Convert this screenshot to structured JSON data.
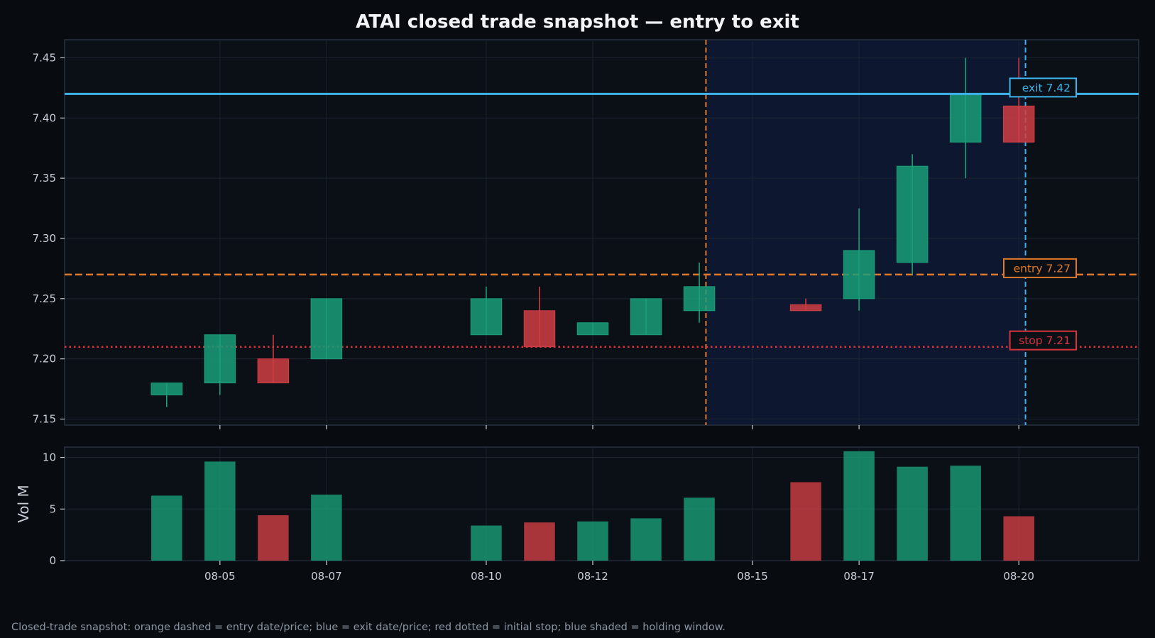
{
  "title": "ATAI closed trade snapshot — entry to exit",
  "footnote": "Closed-trade snapshot: orange dashed = entry date/price; blue = exit date/price; red dotted = initial stop; blue shaded = holding window.",
  "colors": {
    "background": "#080b10",
    "panel": "#0b1017",
    "holding_window": "#0d1a33",
    "up": "#1a9e78",
    "down": "#cf3e44",
    "entry": "#e07a2a",
    "exit": "#3fb4ea",
    "stop": "#d8333b",
    "text": "#c9cfd8"
  },
  "chart_data": [
    {
      "type": "candlestick",
      "title": "ATAI closed trade snapshot — entry to exit",
      "ylim": [
        7.145,
        7.465
      ],
      "yticks": [
        7.15,
        7.2,
        7.25,
        7.3,
        7.35,
        7.4,
        7.45
      ],
      "ytick_labels": [
        "7.15",
        "7.20",
        "7.25",
        "7.30",
        "7.35",
        "7.40",
        "7.45"
      ],
      "xlim": [
        "2025-08-02T14:00",
        "2025-08-22T18:00"
      ],
      "xticks": [
        "2025-08-05",
        "2025-08-07",
        "2025-08-10",
        "2025-08-12",
        "2025-08-15",
        "2025-08-17",
        "2025-08-20"
      ],
      "xtick_labels": [
        "08-05",
        "08-07",
        "08-10",
        "08-12",
        "08-15",
        "08-17",
        "08-20"
      ],
      "grid": true,
      "candles": [
        {
          "date": "2025-08-04",
          "open": 7.17,
          "high": 7.18,
          "low": 7.16,
          "close": 7.18
        },
        {
          "date": "2025-08-05",
          "open": 7.18,
          "high": 7.22,
          "low": 7.17,
          "close": 7.22
        },
        {
          "date": "2025-08-06",
          "open": 7.2,
          "high": 7.22,
          "low": 7.18,
          "close": 7.18
        },
        {
          "date": "2025-08-07",
          "open": 7.2,
          "high": 7.25,
          "low": 7.2,
          "close": 7.25
        },
        {
          "date": "2025-08-10",
          "open": 7.22,
          "high": 7.26,
          "low": 7.22,
          "close": 7.25
        },
        {
          "date": "2025-08-11",
          "open": 7.24,
          "high": 7.26,
          "low": 7.21,
          "close": 7.21
        },
        {
          "date": "2025-08-12",
          "open": 7.22,
          "high": 7.23,
          "low": 7.22,
          "close": 7.23
        },
        {
          "date": "2025-08-13",
          "open": 7.22,
          "high": 7.25,
          "low": 7.22,
          "close": 7.25
        },
        {
          "date": "2025-08-14",
          "open": 7.24,
          "high": 7.28,
          "low": 7.23,
          "close": 7.26
        },
        {
          "date": "2025-08-16",
          "open": 7.245,
          "high": 7.25,
          "low": 7.24,
          "close": 7.24
        },
        {
          "date": "2025-08-17",
          "open": 7.25,
          "high": 7.325,
          "low": 7.24,
          "close": 7.29
        },
        {
          "date": "2025-08-18",
          "open": 7.28,
          "high": 7.37,
          "low": 7.27,
          "close": 7.36
        },
        {
          "date": "2025-08-19",
          "open": 7.38,
          "high": 7.45,
          "low": 7.35,
          "close": 7.42
        },
        {
          "date": "2025-08-20",
          "open": 7.41,
          "high": 7.45,
          "low": 7.38,
          "close": 7.38
        }
      ],
      "entry": {
        "date": "2025-08-14T15:00",
        "price": 7.27,
        "label": "entry 7.27"
      },
      "exit": {
        "date": "2025-08-20T15:00",
        "price": 7.42,
        "label": "exit 7.42"
      },
      "stop": {
        "price": 7.21,
        "label": "stop 7.21"
      },
      "holding_window": [
        "2025-08-14T15:00",
        "2025-08-20T15:00"
      ]
    },
    {
      "type": "bar",
      "ylabel": "Vol M",
      "ylim": [
        0,
        11
      ],
      "yticks": [
        0,
        5,
        10
      ],
      "ytick_labels": [
        "0",
        "5",
        "10"
      ],
      "grid": true,
      "volumes": [
        {
          "date": "2025-08-04",
          "value": 6.3,
          "direction": "up"
        },
        {
          "date": "2025-08-05",
          "value": 9.6,
          "direction": "up"
        },
        {
          "date": "2025-08-06",
          "value": 4.4,
          "direction": "down"
        },
        {
          "date": "2025-08-07",
          "value": 6.4,
          "direction": "up"
        },
        {
          "date": "2025-08-10",
          "value": 3.4,
          "direction": "up"
        },
        {
          "date": "2025-08-11",
          "value": 3.7,
          "direction": "down"
        },
        {
          "date": "2025-08-12",
          "value": 3.8,
          "direction": "up"
        },
        {
          "date": "2025-08-13",
          "value": 4.1,
          "direction": "up"
        },
        {
          "date": "2025-08-14",
          "value": 6.1,
          "direction": "up"
        },
        {
          "date": "2025-08-16",
          "value": 7.6,
          "direction": "down"
        },
        {
          "date": "2025-08-17",
          "value": 10.6,
          "direction": "up"
        },
        {
          "date": "2025-08-18",
          "value": 9.1,
          "direction": "up"
        },
        {
          "date": "2025-08-19",
          "value": 9.2,
          "direction": "up"
        },
        {
          "date": "2025-08-20",
          "value": 4.3,
          "direction": "down"
        }
      ]
    }
  ]
}
